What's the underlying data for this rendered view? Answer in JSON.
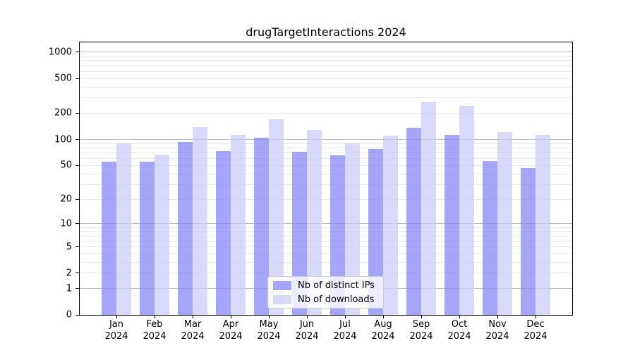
{
  "chart_data": {
    "type": "bar",
    "title": "drugTargetInteractions 2024",
    "y_scale": "log1p",
    "grid": {
      "major_color": "#b9b9b9",
      "minor_color": "#eaeaea"
    },
    "months": [
      "Jan",
      "Feb",
      "Mar",
      "Apr",
      "May",
      "Jun",
      "Jul",
      "Aug",
      "Sep",
      "Oct",
      "Nov",
      "Dec"
    ],
    "year": "2024",
    "categories": [
      "Jan 2024",
      "Feb 2024",
      "Mar 2024",
      "Apr 2024",
      "May 2024",
      "Jun 2024",
      "Jul 2024",
      "Aug 2024",
      "Sep 2024",
      "Oct 2024",
      "Nov 2024",
      "Dec 2024"
    ],
    "series": [
      {
        "name": "Nb of distinct IPs",
        "color": "#8585f6",
        "alpha": 0.73,
        "values": [
          55,
          55,
          93,
          74,
          105,
          72,
          65,
          77,
          135,
          112,
          56,
          47
        ]
      },
      {
        "name": "Nb of downloads",
        "color": "#cbcbf8",
        "alpha": 0.73,
        "values": [
          91,
          67,
          138,
          112,
          170,
          130,
          91,
          110,
          274,
          245,
          121,
          112
        ]
      }
    ],
    "yticks": [
      0,
      1,
      2,
      5,
      10,
      20,
      50,
      100,
      200,
      500,
      1000
    ],
    "ylim": [
      0,
      1296
    ],
    "legend_position": "lower-center-inside"
  }
}
